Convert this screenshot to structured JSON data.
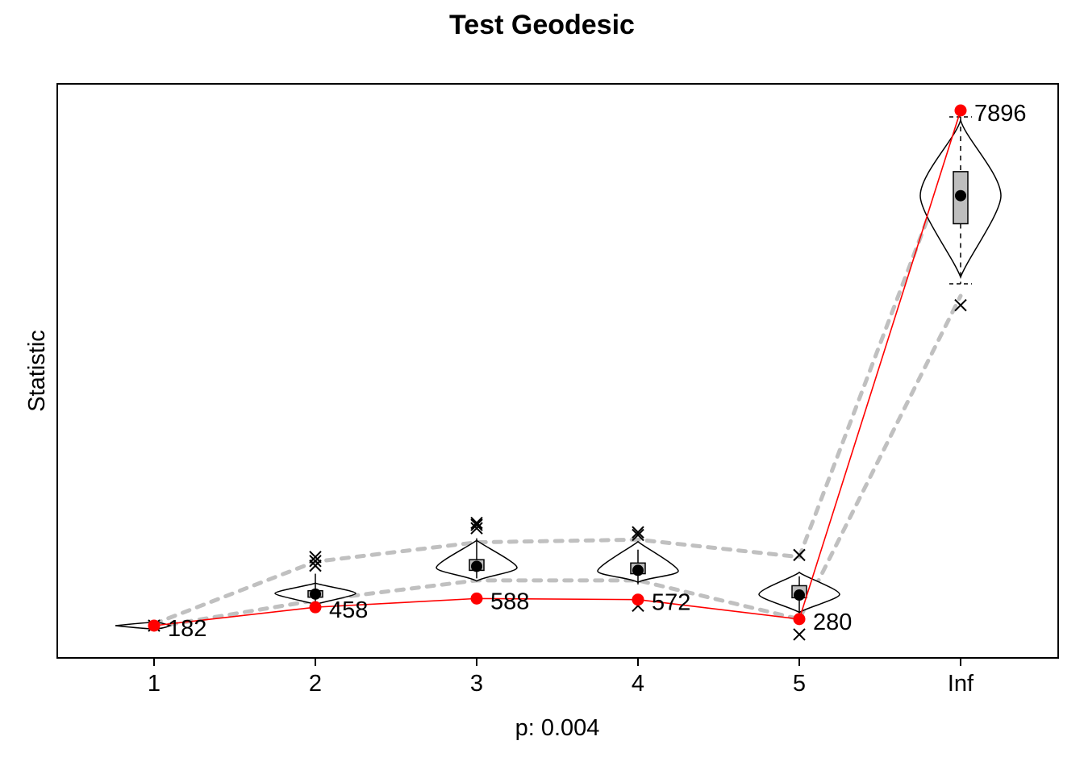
{
  "chart_data": {
    "type": "violin",
    "title": "Test Geodesic",
    "xlabel": "p: 0.004",
    "ylabel": "Statistic",
    "categories": [
      "1",
      "2",
      "3",
      "4",
      "5",
      "Inf"
    ],
    "ylim": [
      0,
      8600
    ],
    "y_ticks_shown": false,
    "grid": false,
    "legend": "none",
    "observed": [
      {
        "x": "1",
        "y": 182,
        "label": "182"
      },
      {
        "x": "2",
        "y": 458,
        "label": "458"
      },
      {
        "x": "3",
        "y": 588,
        "label": "588"
      },
      {
        "x": "4",
        "y": 572,
        "label": "572"
      },
      {
        "x": "5",
        "y": 280,
        "label": "280"
      },
      {
        "x": "Inf",
        "y": 7896,
        "label": "7896"
      }
    ],
    "simulated": [
      {
        "x": "1",
        "median": 182,
        "q1": 170,
        "q3": 195,
        "lower_whisker": 160,
        "upper_whisker": 205,
        "low": 140,
        "high": 215,
        "outliers_high": [],
        "outliers_low": [],
        "mean_marker": 182
      },
      {
        "x": "2",
        "median": 665,
        "q1": 625,
        "q3": 705,
        "lower_whisker": 430,
        "upper_whisker": 960,
        "low": 500,
        "high": 820,
        "outliers_high": [
          1080,
          1150,
          1210
        ],
        "outliers_low": [],
        "mean_marker": 655
      },
      {
        "x": "3",
        "median": 1050,
        "q1": 1010,
        "q3": 1170,
        "lower_whisker": 890,
        "upper_whisker": 1490,
        "low": 850,
        "high": 1460,
        "outliers_high": [
          1640,
          1690,
          1720
        ],
        "outliers_low": [],
        "mean_marker": 1070
      },
      {
        "x": "4",
        "median": 1000,
        "q1": 960,
        "q3": 1120,
        "lower_whisker": 800,
        "upper_whisker": 1320,
        "low": 830,
        "high": 1440,
        "outliers_high": [
          1540,
          1580
        ],
        "outliers_low": [
          480
        ],
        "mean_marker": 1010
      },
      {
        "x": "5",
        "median": 650,
        "q1": 600,
        "q3": 780,
        "lower_whisker": 280,
        "upper_whisker": 920,
        "low": 380,
        "high": 980,
        "outliers_high": [
          1240
        ],
        "outliers_low": [
          50
        ],
        "mean_marker": 640
      },
      {
        "x": "Inf",
        "median": 6620,
        "q1": 6200,
        "q3": 6980,
        "lower_whisker": 5300,
        "upper_whisker": 7800,
        "low": 5400,
        "high": 7750,
        "outliers_high": [],
        "outliers_low": [
          4980
        ],
        "mean_marker": 6620
      }
    ],
    "envelope": {
      "upper": [
        210,
        1140,
        1430,
        1470,
        1210,
        7580
      ],
      "lower": [
        160,
        560,
        860,
        860,
        280,
        5120
      ]
    },
    "colors": {
      "observed": "#ff0000",
      "envelope": "#c0c0c0",
      "box_fill": "#bebebe",
      "ink": "#000000"
    }
  }
}
